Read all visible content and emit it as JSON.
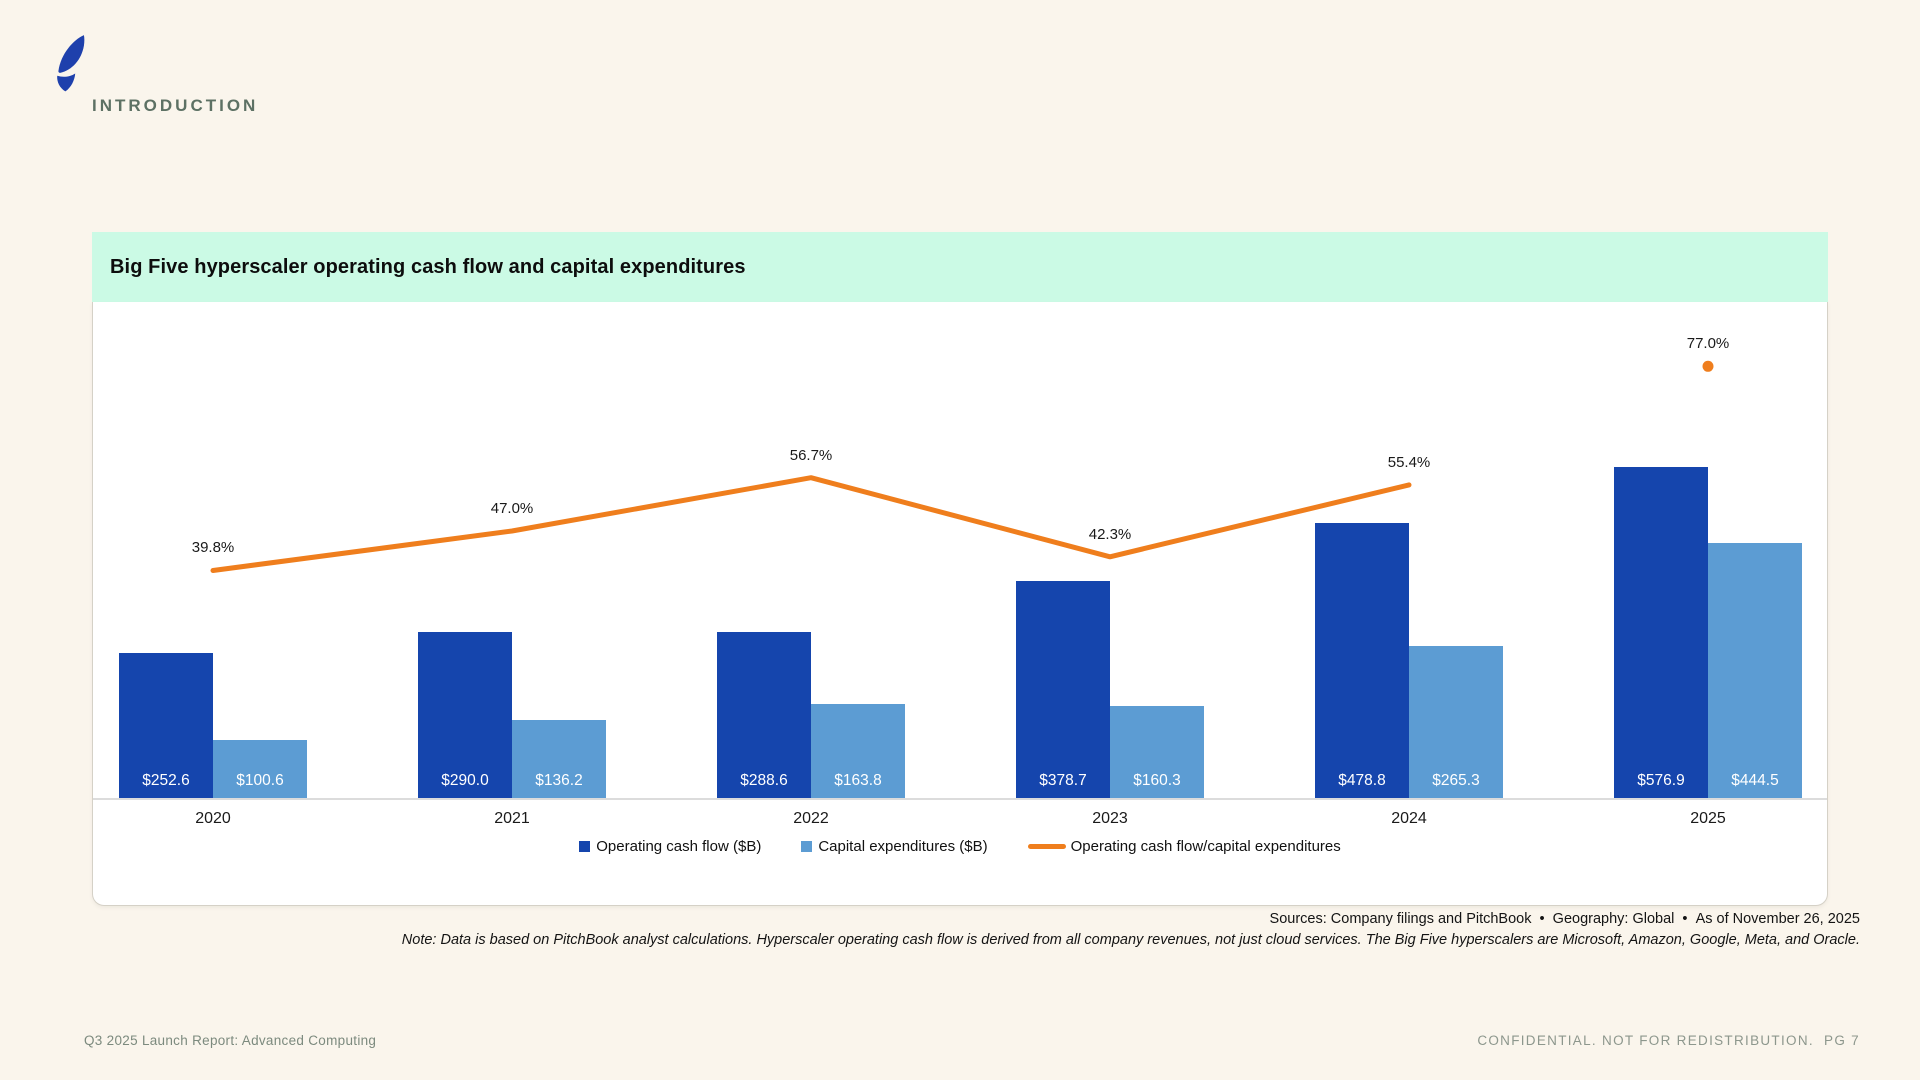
{
  "page": {
    "section_label": "INTRODUCTION",
    "footer_left": "Q3 2025 Launch Report: Advanced Computing",
    "footer_right": "CONFIDENTIAL. NOT FOR REDISTRIBUTION.  PG 7",
    "background_color": "#FAF5EC",
    "brand_logo_color": "#1E40AC"
  },
  "card": {
    "title": "Big Five hyperscaler operating cash flow and capital expenditures",
    "header_color": "#CBFAE5",
    "sources": "Sources: Company filings and PitchBook  •  Geography: Global  •  As of November 26, 2025",
    "note": "Note: Data is based on PitchBook analyst calculations. Hyperscaler operating cash flow is derived from all company revenues, not just cloud services. The Big Five hyperscalers are Microsoft, Amazon, Google, Meta, and Oracle."
  },
  "chart_data": {
    "type": "bar",
    "title": "Big Five hyperscaler operating cash flow and capital expenditures",
    "categories": [
      "2020",
      "2021",
      "2022",
      "2023",
      "2024",
      "2025"
    ],
    "series": [
      {
        "name": "Operating cash flow ($B)",
        "kind": "bar",
        "color": "#1545AD",
        "values": [
          252.6,
          290.0,
          288.6,
          378.7,
          478.8,
          576.9
        ],
        "data_labels": [
          "$252.6",
          "$290.0",
          "$288.6",
          "$378.7",
          "$478.8",
          "$576.9"
        ]
      },
      {
        "name": "Capital expenditures ($B)",
        "kind": "bar",
        "color": "#5C9CD3",
        "values": [
          100.6,
          136.2,
          163.8,
          160.3,
          265.3,
          444.5
        ],
        "data_labels": [
          "$100.6",
          "$136.2",
          "$163.8",
          "$160.3",
          "$265.3",
          "$444.5"
        ]
      },
      {
        "name": "Operating cash flow/capital expenditures",
        "kind": "line",
        "color": "#EF7E1D",
        "unit": "%",
        "values": [
          39.8,
          47.0,
          56.7,
          42.3,
          55.4,
          77.0
        ],
        "data_labels": [
          "39.8%",
          "47.0%",
          "56.7%",
          "42.3%",
          "55.4%",
          "77.0%"
        ],
        "line_connects_first_n_points": 5,
        "final_point_shown_as_isolated_marker": true
      }
    ],
    "xlabel": "",
    "ylabel": "",
    "value_axis_ticks_visible": false,
    "grid": false,
    "legend_position": "bottom"
  }
}
